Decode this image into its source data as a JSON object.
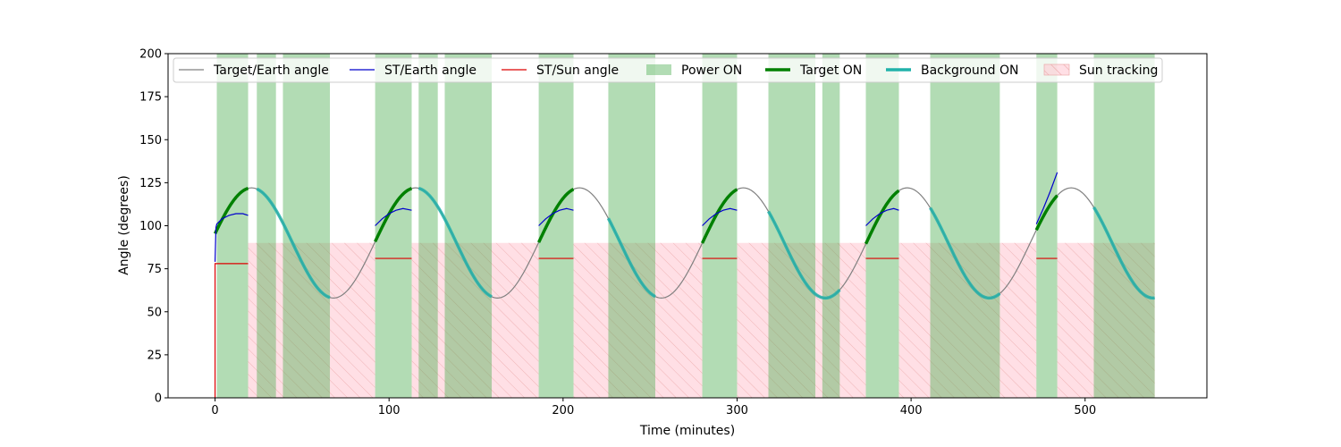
{
  "chart_data": {
    "type": "line",
    "xlabel": "Time (minutes)",
    "ylabel": "Angle (degrees)",
    "xlim": [
      -27,
      570
    ],
    "ylim": [
      0,
      200
    ],
    "x_ticks": [
      0,
      100,
      200,
      300,
      400,
      500
    ],
    "y_ticks": [
      0,
      25,
      50,
      75,
      100,
      125,
      150,
      175,
      200
    ],
    "grid": false,
    "legend_placement": "top (single row)",
    "colors": {
      "target_earth": "#808080",
      "st_earth": "#0000cc",
      "st_sun": "#dd0000",
      "power_on": "#4caf50",
      "target_on": "#008000",
      "background_on": "#20b2aa",
      "sun_tracking": "#ffc0cb"
    },
    "legend": [
      {
        "key": "target_earth",
        "label": "Target/Earth angle",
        "style": "thin-line",
        "color": "#808080"
      },
      {
        "key": "st_earth",
        "label": "ST/Earth angle",
        "style": "thin-line",
        "color": "#0000cc"
      },
      {
        "key": "st_sun",
        "label": "ST/Sun angle",
        "style": "thin-line",
        "color": "#dd0000"
      },
      {
        "key": "power_on",
        "label": "Power ON",
        "style": "patch",
        "color": "#4caf50"
      },
      {
        "key": "target_on",
        "label": "Target ON",
        "style": "thick-line",
        "color": "#008000"
      },
      {
        "key": "background_on",
        "label": "Background ON",
        "style": "thick-line",
        "color": "#20b2aa"
      },
      {
        "key": "sun_tracking",
        "label": "Sun tracking",
        "style": "hatch-patch",
        "color": "#ffc0cb"
      }
    ],
    "target_earth_angle": {
      "model": "sinusoid",
      "mean": 90,
      "amplitude": 32,
      "period_min": 94.2,
      "peak_times_min": [
        21,
        115.2,
        209.4,
        303.6,
        397.8,
        492
      ],
      "x_range": [
        0,
        540
      ]
    },
    "power_on_intervals": [
      [
        1,
        19
      ],
      [
        24,
        35
      ],
      [
        39,
        66
      ],
      [
        92,
        113
      ],
      [
        117,
        128
      ],
      [
        132,
        159
      ],
      [
        186,
        206
      ],
      [
        226,
        253
      ],
      [
        280,
        300
      ],
      [
        318,
        345
      ],
      [
        349,
        359
      ],
      [
        374,
        393
      ],
      [
        411,
        451
      ],
      [
        472,
        484
      ],
      [
        505,
        540
      ]
    ],
    "target_on_intervals": [
      [
        0,
        19
      ],
      [
        92,
        113
      ],
      [
        186,
        206
      ],
      [
        280,
        300
      ],
      [
        374,
        393
      ],
      [
        472,
        484
      ]
    ],
    "background_on_intervals": [
      [
        24,
        66
      ],
      [
        117,
        159
      ],
      [
        226,
        253
      ],
      [
        318,
        359
      ],
      [
        411,
        451
      ],
      [
        505,
        540
      ]
    ],
    "sun_tracking_intervals": [
      [
        19,
        92
      ],
      [
        113,
        186
      ],
      [
        206,
        280
      ],
      [
        300,
        374
      ],
      [
        393,
        472
      ],
      [
        484,
        540
      ]
    ],
    "sun_tracking_level": 90,
    "st_earth_angle": [
      {
        "x": [
          0,
          0.5,
          1,
          4,
          8,
          12,
          16,
          19
        ],
        "y": [
          79,
          99,
          101,
          104,
          106,
          107,
          107,
          106
        ]
      },
      {
        "x": [
          92,
          96,
          100,
          104,
          108,
          113
        ],
        "y": [
          100,
          104,
          107,
          109,
          110,
          109
        ]
      },
      {
        "x": [
          186,
          190,
          194,
          198,
          202,
          206
        ],
        "y": [
          100,
          104,
          107,
          109,
          110,
          109
        ]
      },
      {
        "x": [
          280,
          284,
          288,
          292,
          296,
          300
        ],
        "y": [
          100,
          104,
          107,
          109,
          110,
          109
        ]
      },
      {
        "x": [
          374,
          378,
          382,
          386,
          390,
          393
        ],
        "y": [
          100,
          104,
          107,
          109,
          110,
          109
        ]
      },
      {
        "x": [
          472,
          476,
          480,
          484
        ],
        "y": [
          101,
          110,
          120,
          131
        ]
      }
    ],
    "st_sun_angle": [
      {
        "x": [
          0,
          0,
          1,
          19
        ],
        "y": [
          0,
          78,
          78,
          78
        ]
      },
      {
        "x": [
          92,
          113
        ],
        "y": [
          81,
          81
        ]
      },
      {
        "x": [
          186,
          206
        ],
        "y": [
          81,
          81
        ]
      },
      {
        "x": [
          280,
          300
        ],
        "y": [
          81,
          81
        ]
      },
      {
        "x": [
          374,
          393
        ],
        "y": [
          81,
          81
        ]
      },
      {
        "x": [
          472,
          484
        ],
        "y": [
          81,
          81
        ]
      }
    ]
  }
}
